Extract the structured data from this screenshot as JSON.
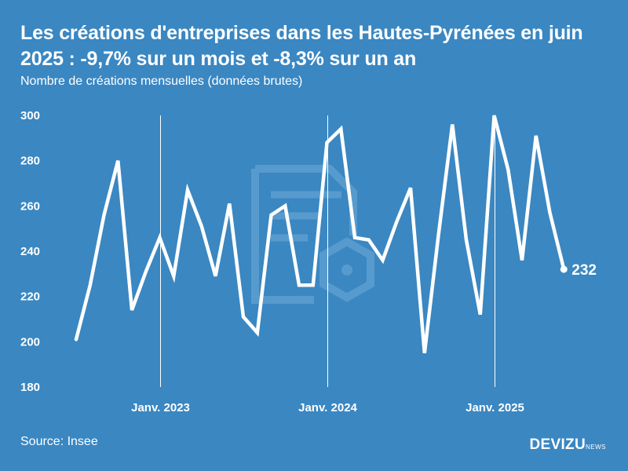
{
  "title": "Les créations d'entreprises dans les Hautes-Pyrénées en juin 2025 : -9,7% sur un mois et -8,3% sur un an",
  "subtitle": "Nombre de créations mensuelles (données brutes)",
  "source": "Source: Insee",
  "brand": {
    "name": "DEVIZU",
    "suffix": "NEWS"
  },
  "colors": {
    "background": "#3a87c2",
    "line": "#ffffff",
    "watermark": "#6aa6d6"
  },
  "chart_data": {
    "type": "line",
    "title": "Les créations d'entreprises dans les Hautes-Pyrénées en juin 2025 : -9,7% sur un mois et -8,3% sur un an",
    "xlabel": "",
    "ylabel": "Nombre de créations mensuelles (données brutes)",
    "ylim": [
      180,
      300
    ],
    "yticks": [
      180,
      200,
      220,
      240,
      260,
      280,
      300
    ],
    "x_start": "2022-07",
    "x_end": "2025-06",
    "xticks": [
      {
        "label": "Janv. 2023",
        "index": 6
      },
      {
        "label": "Janv. 2024",
        "index": 18
      },
      {
        "label": "Janv. 2025",
        "index": 30
      }
    ],
    "grid": "vertical-at-xticks",
    "series": [
      {
        "name": "Créations mensuelles",
        "values": [
          201,
          225,
          256,
          280,
          214,
          231,
          246,
          229,
          267,
          251,
          229,
          261,
          211,
          204,
          256,
          260,
          225,
          225,
          288,
          294,
          246,
          245,
          236,
          253,
          268,
          195,
          247,
          296,
          245,
          212,
          300,
          276,
          236,
          291,
          257,
          232
        ]
      }
    ],
    "end_label": "232"
  }
}
